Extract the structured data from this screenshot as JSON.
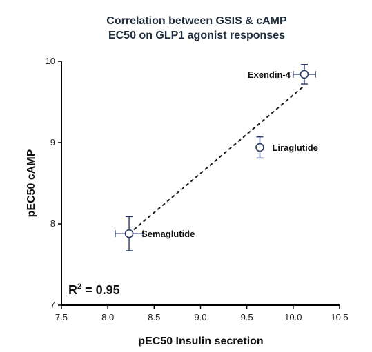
{
  "chart_data": {
    "type": "scatter",
    "title": "Correlation between GSIS & cAMP",
    "subtitle": "EC50 on GLP1 agonist responses",
    "xlabel": "pEC50 Insulin secretion",
    "ylabel": "pEC50 cAMP",
    "xlim": [
      7.5,
      10.5
    ],
    "ylim": [
      7,
      10
    ],
    "x_ticks": [
      7.5,
      8.0,
      8.5,
      9.0,
      9.5,
      10.0,
      10.5
    ],
    "x_tick_labels": [
      "7.5",
      "8.0",
      "8.5",
      "9.0",
      "9.5",
      "10.0",
      "10.5"
    ],
    "y_ticks": [
      7,
      8,
      9,
      10
    ],
    "y_tick_labels": [
      "7",
      "8",
      "9",
      "10"
    ],
    "grid": false,
    "points": [
      {
        "label": "Semaglutide",
        "x": 8.23,
        "y": 7.88,
        "x_err": 0.15,
        "y_err": 0.21
      },
      {
        "label": "Liraglutide",
        "x": 9.64,
        "y": 8.94,
        "x_err": 0.0,
        "y_err": 0.13
      },
      {
        "label": "Exendin-4",
        "x": 10.12,
        "y": 9.84,
        "x_err": 0.12,
        "y_err": 0.12
      }
    ],
    "fit_line": {
      "style": "dashed",
      "x": [
        8.23,
        10.12
      ],
      "y": [
        7.88,
        9.7
      ]
    },
    "r2_prefix": "R",
    "r2_exponent": "2",
    "r2_value": " = 0.95",
    "colors": {
      "marker": "#2b3a67",
      "axis": "#000000",
      "fit": "#1a1a1a",
      "title": "#1f2d3d"
    }
  }
}
